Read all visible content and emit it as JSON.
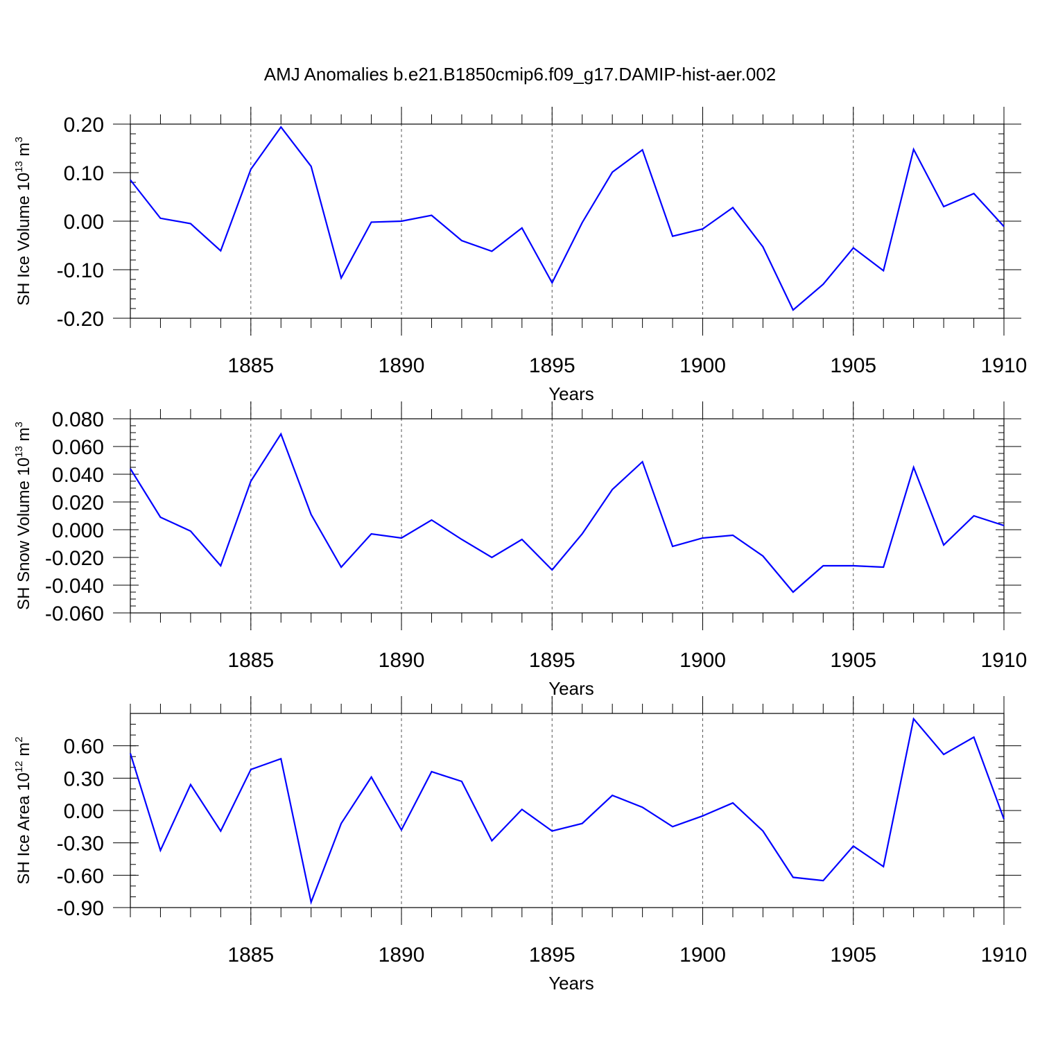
{
  "title": "AMJ Anomalies b.e21.B1850cmip6.f09_g17.DAMIP-hist-aer.002",
  "line_color": "#0000ff",
  "chart_data": [
    {
      "type": "line",
      "ylabel": {
        "main": "SH Ice Volume 10",
        "exp": "13",
        "unit": " m",
        "unit_exp": "3"
      },
      "xlabel": "Years",
      "xlim": [
        1881,
        1910
      ],
      "ylim": [
        -0.2,
        0.2
      ],
      "x_ticks": [
        1885,
        1890,
        1895,
        1900,
        1905,
        1910
      ],
      "x_tick_labels": [
        "1885",
        "1890",
        "1895",
        "1900",
        "1905",
        "1910"
      ],
      "y_ticks": [
        -0.2,
        -0.1,
        0,
        0.1,
        0.2
      ],
      "y_tick_labels": [
        "-0.20",
        "-0.10",
        "0.00",
        "0.10",
        "0.20"
      ],
      "y_minor_step": 0.02,
      "grid_x": true,
      "x": [
        1881,
        1882,
        1883,
        1884,
        1885,
        1886,
        1887,
        1888,
        1889,
        1890,
        1891,
        1892,
        1893,
        1894,
        1895,
        1896,
        1897,
        1898,
        1899,
        1900,
        1901,
        1902,
        1903,
        1904,
        1905,
        1906,
        1907,
        1908,
        1909,
        1910
      ],
      "series": [
        {
          "values": [
            0.085,
            0.006,
            -0.005,
            -0.061,
            0.107,
            0.194,
            0.113,
            -0.117,
            -0.002,
            0.0,
            0.012,
            -0.04,
            -0.062,
            -0.014,
            -0.127,
            -0.003,
            0.101,
            0.147,
            -0.031,
            -0.016,
            0.028,
            -0.053,
            -0.183,
            -0.13,
            -0.055,
            -0.102,
            0.148,
            0.03,
            0.057,
            -0.011
          ]
        }
      ]
    },
    {
      "type": "line",
      "ylabel": {
        "main": "SH Snow Volume 10",
        "exp": "13",
        "unit": " m",
        "unit_exp": "3"
      },
      "xlabel": "Years",
      "xlim": [
        1881,
        1910
      ],
      "ylim": [
        -0.06,
        0.08
      ],
      "x_ticks": [
        1885,
        1890,
        1895,
        1900,
        1905,
        1910
      ],
      "x_tick_labels": [
        "1885",
        "1890",
        "1895",
        "1900",
        "1905",
        "1910"
      ],
      "y_ticks": [
        -0.06,
        -0.04,
        -0.02,
        0,
        0.02,
        0.04,
        0.06,
        0.08
      ],
      "y_tick_labels": [
        "-0.060",
        "-0.040",
        "-0.020",
        "0.000",
        "0.020",
        "0.040",
        "0.060",
        "0.080"
      ],
      "y_minor_step": 0.005,
      "grid_x": true,
      "x": [
        1881,
        1882,
        1883,
        1884,
        1885,
        1886,
        1887,
        1888,
        1889,
        1890,
        1891,
        1892,
        1893,
        1894,
        1895,
        1896,
        1897,
        1898,
        1899,
        1900,
        1901,
        1902,
        1903,
        1904,
        1905,
        1906,
        1907,
        1908,
        1909,
        1910
      ],
      "series": [
        {
          "values": [
            0.044,
            0.009,
            -0.001,
            -0.026,
            0.035,
            0.069,
            0.011,
            -0.027,
            -0.003,
            -0.006,
            0.007,
            -0.007,
            -0.02,
            -0.007,
            -0.029,
            -0.003,
            0.029,
            0.049,
            -0.012,
            -0.006,
            -0.004,
            -0.019,
            -0.045,
            -0.026,
            -0.026,
            -0.027,
            0.045,
            -0.011,
            0.01,
            0.003
          ]
        }
      ]
    },
    {
      "type": "line",
      "ylabel": {
        "main": "SH Ice Area 10",
        "exp": "12",
        "unit": " m",
        "unit_exp": "2"
      },
      "xlabel": "Years",
      "xlim": [
        1881,
        1910
      ],
      "ylim": [
        -0.9,
        0.9
      ],
      "x_ticks": [
        1885,
        1890,
        1895,
        1900,
        1905,
        1910
      ],
      "x_tick_labels": [
        "1885",
        "1890",
        "1895",
        "1900",
        "1905",
        "1910"
      ],
      "y_ticks": [
        -0.9,
        -0.6,
        -0.3,
        0,
        0.3,
        0.6
      ],
      "y_tick_labels": [
        "-0.90",
        "-0.60",
        "-0.30",
        "0.00",
        "0.30",
        "0.60"
      ],
      "y_minor_step": 0.1,
      "grid_x": true,
      "x": [
        1881,
        1882,
        1883,
        1884,
        1885,
        1886,
        1887,
        1888,
        1889,
        1890,
        1891,
        1892,
        1893,
        1894,
        1895,
        1896,
        1897,
        1898,
        1899,
        1900,
        1901,
        1902,
        1903,
        1904,
        1905,
        1906,
        1907,
        1908,
        1909,
        1910
      ],
      "series": [
        {
          "values": [
            0.53,
            -0.37,
            0.24,
            -0.19,
            0.38,
            0.48,
            -0.85,
            -0.12,
            0.31,
            -0.18,
            0.36,
            0.27,
            -0.28,
            0.01,
            -0.19,
            -0.12,
            0.14,
            0.03,
            -0.15,
            -0.05,
            0.07,
            -0.19,
            -0.62,
            -0.65,
            -0.33,
            -0.52,
            0.85,
            0.52,
            0.68,
            -0.08
          ]
        }
      ]
    }
  ]
}
